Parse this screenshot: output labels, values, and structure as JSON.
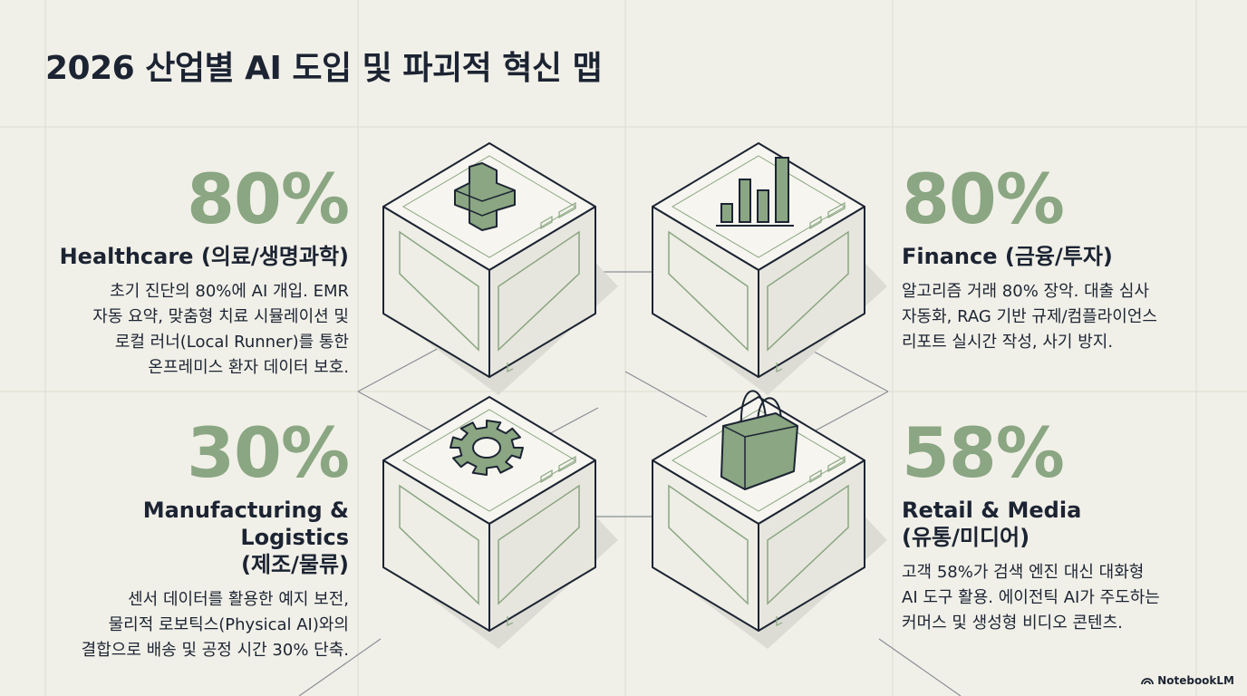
{
  "title": "2026 산업별 AI 도입 및 파괴적 혁신 맵",
  "colors": {
    "accent": "#8aa682",
    "ink": "#1c2433",
    "background": "#f1f0e8"
  },
  "sectors": {
    "healthcare": {
      "pct": "80%",
      "name": "Healthcare (의료/생명과학)",
      "desc": [
        "초기 진단의 80%에 AI 개입. EMR",
        "자동 요약, 맞춤형 치료 시뮬레이션 및",
        "로컬 러너(Local Runner)를 통한",
        "온프레미스 환자 데이터 보호."
      ],
      "icon": "medical-cross-icon"
    },
    "finance": {
      "pct": "80%",
      "name": "Finance (금융/투자)",
      "desc": [
        "알고리즘 거래 80% 장악. 대출 심사",
        "자동화, RAG 기반 규제/컴플라이언스",
        "리포트 실시간 작성, 사기 방지."
      ],
      "icon": "bar-chart-icon"
    },
    "manufacturing": {
      "pct": "30%",
      "name": [
        "Manufacturing & Logistics",
        "(제조/물류)"
      ],
      "desc": [
        "센서 데이터를 활용한 예지 보전,",
        "물리적 로보틱스(Physical AI)와의",
        "결합으로 배송 및 공정 시간 30% 단축."
      ],
      "icon": "gear-icon"
    },
    "retail": {
      "pct": "58%",
      "name": [
        "Retail & Media",
        "(유통/미디어)"
      ],
      "desc": [
        "고객 58%가 검색 엔진 대신 대화형",
        "AI 도구 활용. 에이전틱 AI가 주도하는",
        "커머스 및 생성형 비디오 콘텐츠."
      ],
      "icon": "shopping-bag-icon"
    }
  },
  "brand": "NotebookLM"
}
